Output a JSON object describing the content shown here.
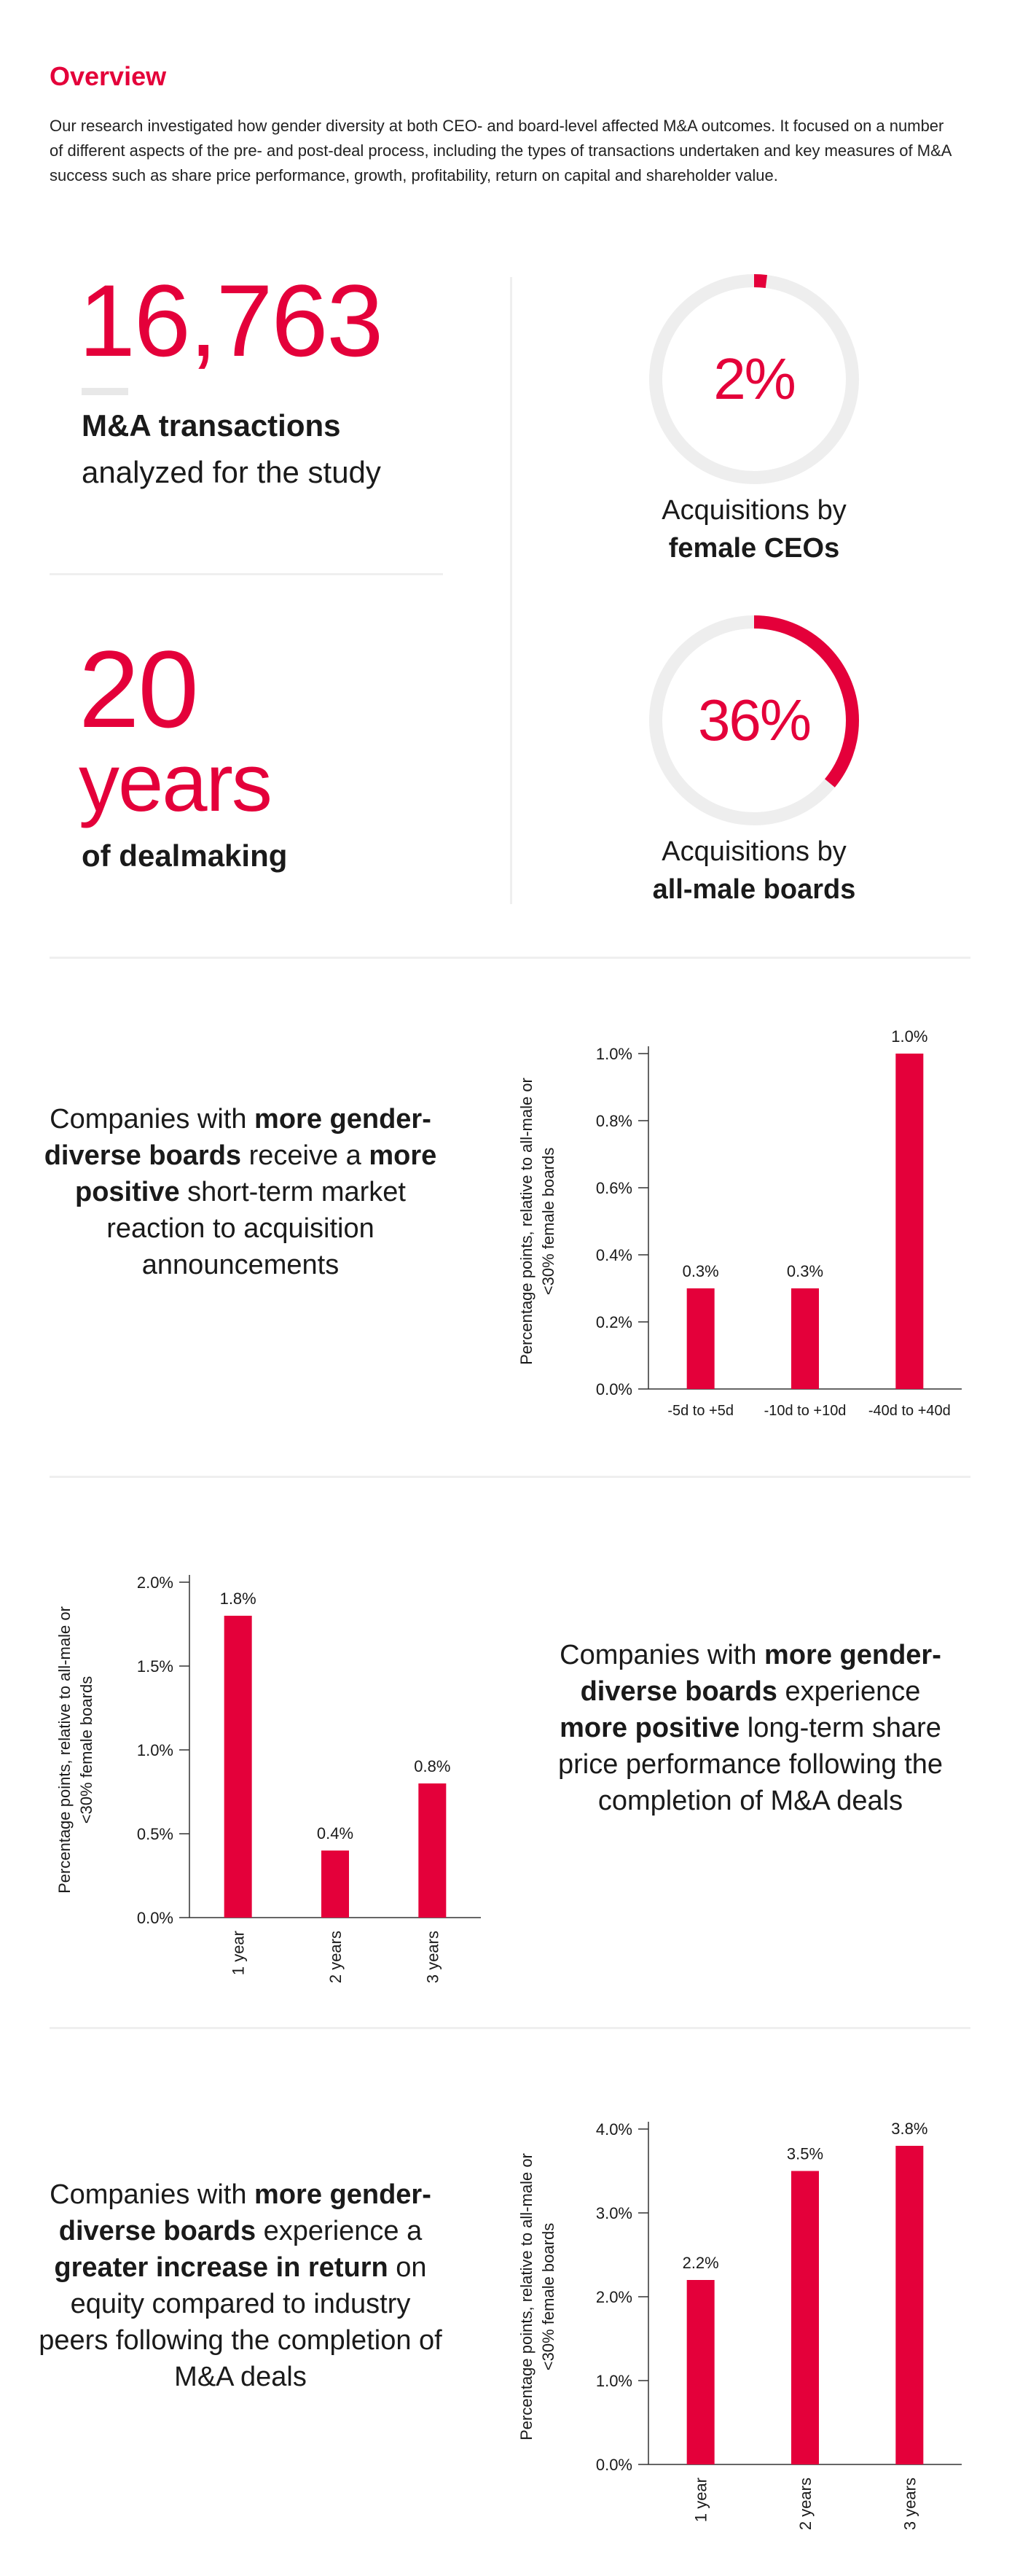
{
  "overview": {
    "title": "Overview",
    "intro": "Our research investigated how gender diversity at both CEO- and board-level affected M&A outcomes. It focused on a number of different aspects of the pre- and post-deal process, including the types of transactions undertaken and key measures of M&A success such as share price performance, growth, profitability, return on capital and shareholder value."
  },
  "stats": {
    "transactions": {
      "value": "16,763",
      "label_bold": "M&A transactions",
      "label": "analyzed for the study"
    },
    "years": {
      "value": "20",
      "unit": "years",
      "label_bold": "of dealmaking"
    }
  },
  "donuts": [
    {
      "value_text": "2%",
      "fraction": 0.02,
      "caption_line1": "Acquisitions by",
      "caption_bold": "female CEOs"
    },
    {
      "value_text": "36%",
      "fraction": 0.36,
      "caption_line1": "Acquisitions by",
      "caption_bold": "all-male boards"
    }
  ],
  "statements": [
    {
      "pre": "Companies with ",
      "b1": "more gender-diverse boards",
      "mid": " receive a ",
      "b2": "more positive",
      "post": " short-term market reaction to acquisition announcements"
    },
    {
      "pre": "Companies with ",
      "b1": "more gender-diverse boards",
      "mid": " experience ",
      "b2": "more positive",
      "post": " long-term share price performance following the completion of M&A deals"
    },
    {
      "pre": "Companies with ",
      "b1": "more gender-diverse boards",
      "mid": " experience a ",
      "b2": "greater increase in return",
      "post": " on equity compared to industry peers following the completion of M&A deals"
    }
  ],
  "colors": {
    "accent": "#e4003a",
    "track": "#eeeeee",
    "divider": "#efefef"
  },
  "chart_data": [
    {
      "type": "bar",
      "categories": [
        "-5d to +5d",
        "-10d to +10d",
        "-40d to +40d"
      ],
      "values": [
        0.3,
        0.3,
        1.0
      ],
      "value_labels": [
        "0.3%",
        "0.3%",
        "1.0%"
      ],
      "yticks": [
        "0.0%",
        "0.2%",
        "0.4%",
        "0.6%",
        "0.8%",
        "1.0%"
      ],
      "ylim": [
        0,
        1.0
      ],
      "ylabel_line1": "Percentage points, relative to all-male or",
      "ylabel_line2": "<30% female boards",
      "xlabel": "",
      "grid": false
    },
    {
      "type": "bar",
      "categories": [
        "1 year",
        "2 years",
        "3 years"
      ],
      "values": [
        1.8,
        0.4,
        0.8
      ],
      "value_labels": [
        "1.8%",
        "0.4%",
        "0.8%"
      ],
      "yticks": [
        "0.0%",
        "0.5%",
        "1.0%",
        "1.5%",
        "2.0%"
      ],
      "ylim": [
        0,
        2.0
      ],
      "ylabel_line1": "Percentage points, relative to all-male or",
      "ylabel_line2": "<30% female boards",
      "xlabel": "",
      "grid": false
    },
    {
      "type": "bar",
      "categories": [
        "1 year",
        "2 years",
        "3 years"
      ],
      "values": [
        2.2,
        3.5,
        3.8
      ],
      "value_labels": [
        "2.2%",
        "3.5%",
        "3.8%"
      ],
      "yticks": [
        "0.0%",
        "1.0%",
        "2.0%",
        "3.0%",
        "4.0%"
      ],
      "ylim": [
        0,
        4.0
      ],
      "ylabel_line1": "Percentage points, relative to all-male or",
      "ylabel_line2": "<30% female boards",
      "xlabel": "",
      "grid": false
    }
  ]
}
